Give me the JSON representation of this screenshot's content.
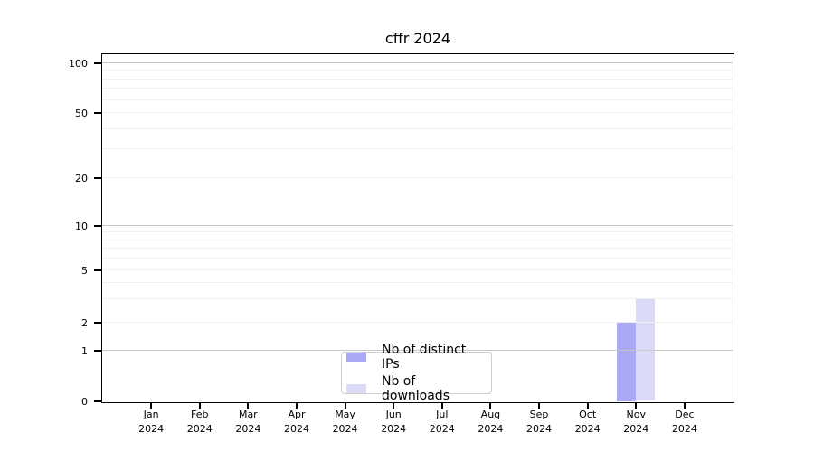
{
  "title": "cffr 2024",
  "legend": {
    "items": [
      {
        "label": "Nb of distinct IPs",
        "color": "#a9a9f7"
      },
      {
        "label": "Nb of downloads",
        "color": "#dbdbf7"
      }
    ]
  },
  "y_axis": {
    "tick_labels": [
      "100",
      "50",
      "20",
      "10",
      "5",
      "2",
      "1",
      "0"
    ]
  },
  "x_axis": {
    "tick_labels": [
      "Jan 2024",
      "Feb 2024",
      "Mar 2024",
      "Apr 2024",
      "May 2024",
      "Jun 2024",
      "Jul 2024",
      "Aug 2024",
      "Sep 2024",
      "Oct 2024",
      "Nov 2024",
      "Dec 2024"
    ]
  },
  "chart_data": {
    "type": "bar",
    "title": "cffr 2024",
    "categories": [
      "Jan 2024",
      "Feb 2024",
      "Mar 2024",
      "Apr 2024",
      "May 2024",
      "Jun 2024",
      "Jul 2024",
      "Aug 2024",
      "Sep 2024",
      "Oct 2024",
      "Nov 2024",
      "Dec 2024"
    ],
    "series": [
      {
        "name": "Nb of distinct IPs",
        "color": "#a9a9f7",
        "values": [
          0,
          0,
          0,
          0,
          0,
          0,
          0,
          0,
          0,
          0,
          2,
          0
        ]
      },
      {
        "name": "Nb of downloads",
        "color": "#dbdbf7",
        "values": [
          0,
          0,
          0,
          0,
          0,
          0,
          0,
          0,
          0,
          0,
          3,
          0
        ]
      }
    ],
    "yscale": "log-like (symlog, 0 shown at baseline)",
    "y_ticks": [
      100,
      50,
      20,
      10,
      5,
      2,
      1,
      0
    ],
    "y_minor_gridlines": [
      3,
      4,
      6,
      7,
      8,
      9,
      30,
      40,
      60,
      70,
      80,
      90
    ],
    "ylim": [
      0,
      115
    ],
    "grid": true,
    "legend_position": "lower center, inside axes"
  }
}
